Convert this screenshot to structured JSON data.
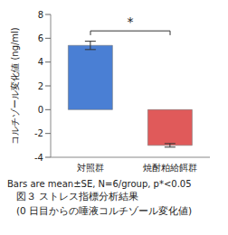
{
  "chart_data": {
    "type": "bar",
    "categories": [
      "対照群",
      "焼酎粕給餌群"
    ],
    "values": [
      5.4,
      -3.0
    ],
    "errors": [
      0.35,
      0.15
    ],
    "colors": [
      "#4a7fd4",
      "#e05a5a"
    ],
    "y_label": "コルチゾール変化値 (ng/ml)",
    "ylim": [
      -4,
      8
    ],
    "yticks": [
      -4,
      -2,
      0,
      2,
      4,
      6,
      8
    ],
    "annotations": [
      "*"
    ],
    "notes": [
      "Bars are mean±SE, N=6/group, p*<0.05"
    ],
    "caption": [
      "図３ ストレス指標分析結果",
      "(0 日目からの唾液コルチゾール変化値)"
    ]
  }
}
